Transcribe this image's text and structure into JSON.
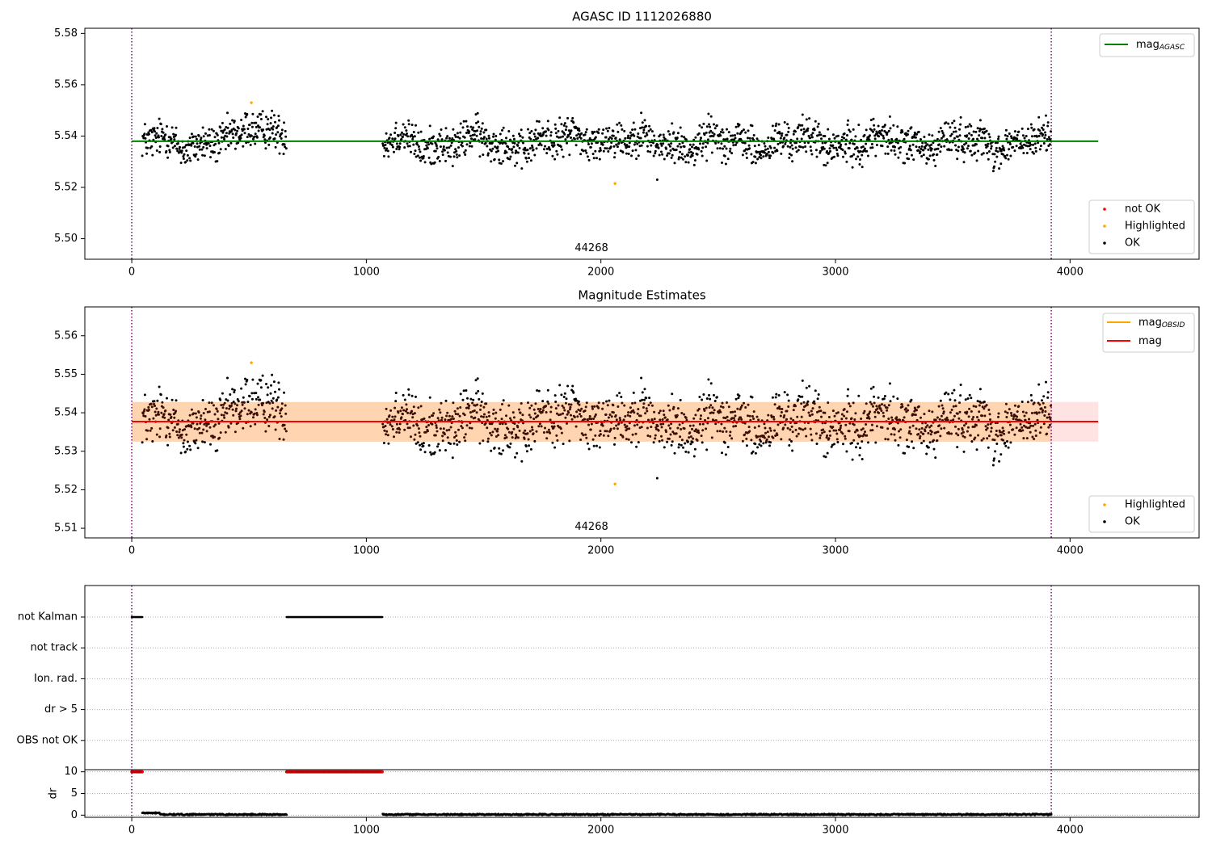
{
  "chart_data": [
    {
      "type": "scatter",
      "title": "AGASC ID 1112026880",
      "xlabel": "",
      "ylabel": "",
      "xlim": [
        -200,
        4550
      ],
      "ylim": [
        5.492,
        5.582
      ],
      "x_ticks": [
        0,
        1000,
        2000,
        3000,
        4000
      ],
      "y_ticks": [
        5.5,
        5.52,
        5.54,
        5.56,
        5.58
      ],
      "grid": false,
      "reference_lines": [
        {
          "label": "mag",
          "subscript": "AGASC",
          "y": 5.538,
          "x_range": [
            0,
            4120
          ],
          "color": "#008000"
        }
      ],
      "vertical_lines": [
        0,
        3920
      ],
      "annotations": [
        {
          "text": "44268",
          "x": 1960,
          "y": 5.494
        }
      ],
      "legends": [
        {
          "placement": "upper right",
          "entries": [
            {
              "label": "mag",
              "subscript": "AGASC",
              "kind": "line",
              "color": "#008000"
            }
          ]
        },
        {
          "placement": "lower right",
          "entries": [
            {
              "label": "not OK",
              "kind": "point",
              "color": "#ff0000"
            },
            {
              "label": "Highlighted",
              "kind": "point",
              "color": "#ffa500"
            },
            {
              "label": "OK",
              "kind": "point",
              "color": "#000000"
            }
          ]
        }
      ],
      "series": [
        {
          "name": "OK",
          "color": "#000000",
          "x_ranges": [
            [
              45,
              660
            ],
            [
              1070,
              3920
            ]
          ],
          "y_center": 5.5375,
          "y_spread": 0.0055,
          "sampling": "dense scatter, approx. one point per 2 time units"
        },
        {
          "name": "Highlighted",
          "color": "#ffa500",
          "points": [
            [
              510,
              5.553
            ],
            [
              2060,
              5.5215
            ]
          ]
        }
      ]
    },
    {
      "type": "scatter",
      "title": "Magnitude Estimates",
      "xlabel": "",
      "ylabel": "",
      "xlim": [
        -200,
        4550
      ],
      "ylim": [
        5.5075,
        5.5675
      ],
      "x_ticks": [
        0,
        1000,
        2000,
        3000,
        4000
      ],
      "y_ticks": [
        5.51,
        5.52,
        5.53,
        5.54,
        5.55,
        5.56
      ],
      "grid": false,
      "reference_lines": [
        {
          "label": "mag",
          "y": 5.5377,
          "x_range": [
            0,
            4120
          ],
          "color": "#ff0000"
        }
      ],
      "bands": [
        {
          "y_range": [
            5.5325,
            5.5428
          ],
          "x_range": [
            0,
            4120
          ],
          "color": "#ffa0a0"
        },
        {
          "y_range": [
            5.5325,
            5.5428
          ],
          "x_range": [
            0,
            3920
          ],
          "color": "#ffa500"
        }
      ],
      "vertical_lines": [
        0,
        3920
      ],
      "annotations": [
        {
          "text": "44268",
          "x": 1960,
          "y": 5.5095
        }
      ],
      "legends": [
        {
          "placement": "upper right",
          "entries": [
            {
              "label": "mag",
              "subscript": "OBSID",
              "kind": "line",
              "color": "#ffa500"
            },
            {
              "label": "mag",
              "kind": "line",
              "color": "#ff0000"
            }
          ]
        },
        {
          "placement": "lower right",
          "entries": [
            {
              "label": "Highlighted",
              "kind": "point",
              "color": "#ffa500"
            },
            {
              "label": "OK",
              "kind": "point",
              "color": "#000000"
            }
          ]
        }
      ],
      "series": [
        {
          "name": "OK",
          "color": "#000000",
          "x_ranges": [
            [
              45,
              660
            ],
            [
              1070,
              3920
            ]
          ],
          "y_center": 5.5375,
          "y_spread": 0.0055,
          "sampling": "dense scatter"
        },
        {
          "name": "Highlighted",
          "color": "#ffa500",
          "points": [
            [
              510,
              5.553
            ],
            [
              2060,
              5.5215
            ]
          ]
        }
      ]
    },
    {
      "type": "scatter",
      "title": "",
      "xlabel": "",
      "ylabel": "",
      "xlim": [
        -200,
        4550
      ],
      "categories": [
        "not Kalman",
        "not track",
        "Ion. rad.",
        "dr > 5",
        "OBS not OK"
      ],
      "grid": "horizontal dotted",
      "vertical_lines": [
        0,
        3920
      ],
      "flag_segments": [
        {
          "category": "not Kalman",
          "x_range": [
            0,
            45
          ]
        },
        {
          "category": "not Kalman",
          "x_range": [
            660,
            1070
          ]
        }
      ]
    },
    {
      "type": "scatter",
      "title": "",
      "xlabel": "",
      "ylabel": "dr",
      "xlim": [
        -200,
        4550
      ],
      "ylim": [
        -0.5,
        10.5
      ],
      "x_ticks": [
        0,
        1000,
        2000,
        3000,
        4000
      ],
      "y_ticks": [
        0,
        5,
        10
      ],
      "grid": "horizontal dotted",
      "vertical_lines": [
        0,
        3920
      ],
      "series": [
        {
          "name": "dr",
          "color": "#000000",
          "x_ranges": [
            [
              45,
              660
            ],
            [
              1070,
              3920
            ]
          ],
          "y_center": 0.15,
          "y_spread": 0.3
        },
        {
          "name": "dr clipped",
          "color": "#ff0000",
          "x_ranges": [
            [
              0,
              45
            ],
            [
              660,
              1070
            ]
          ],
          "y": 10
        }
      ]
    }
  ]
}
